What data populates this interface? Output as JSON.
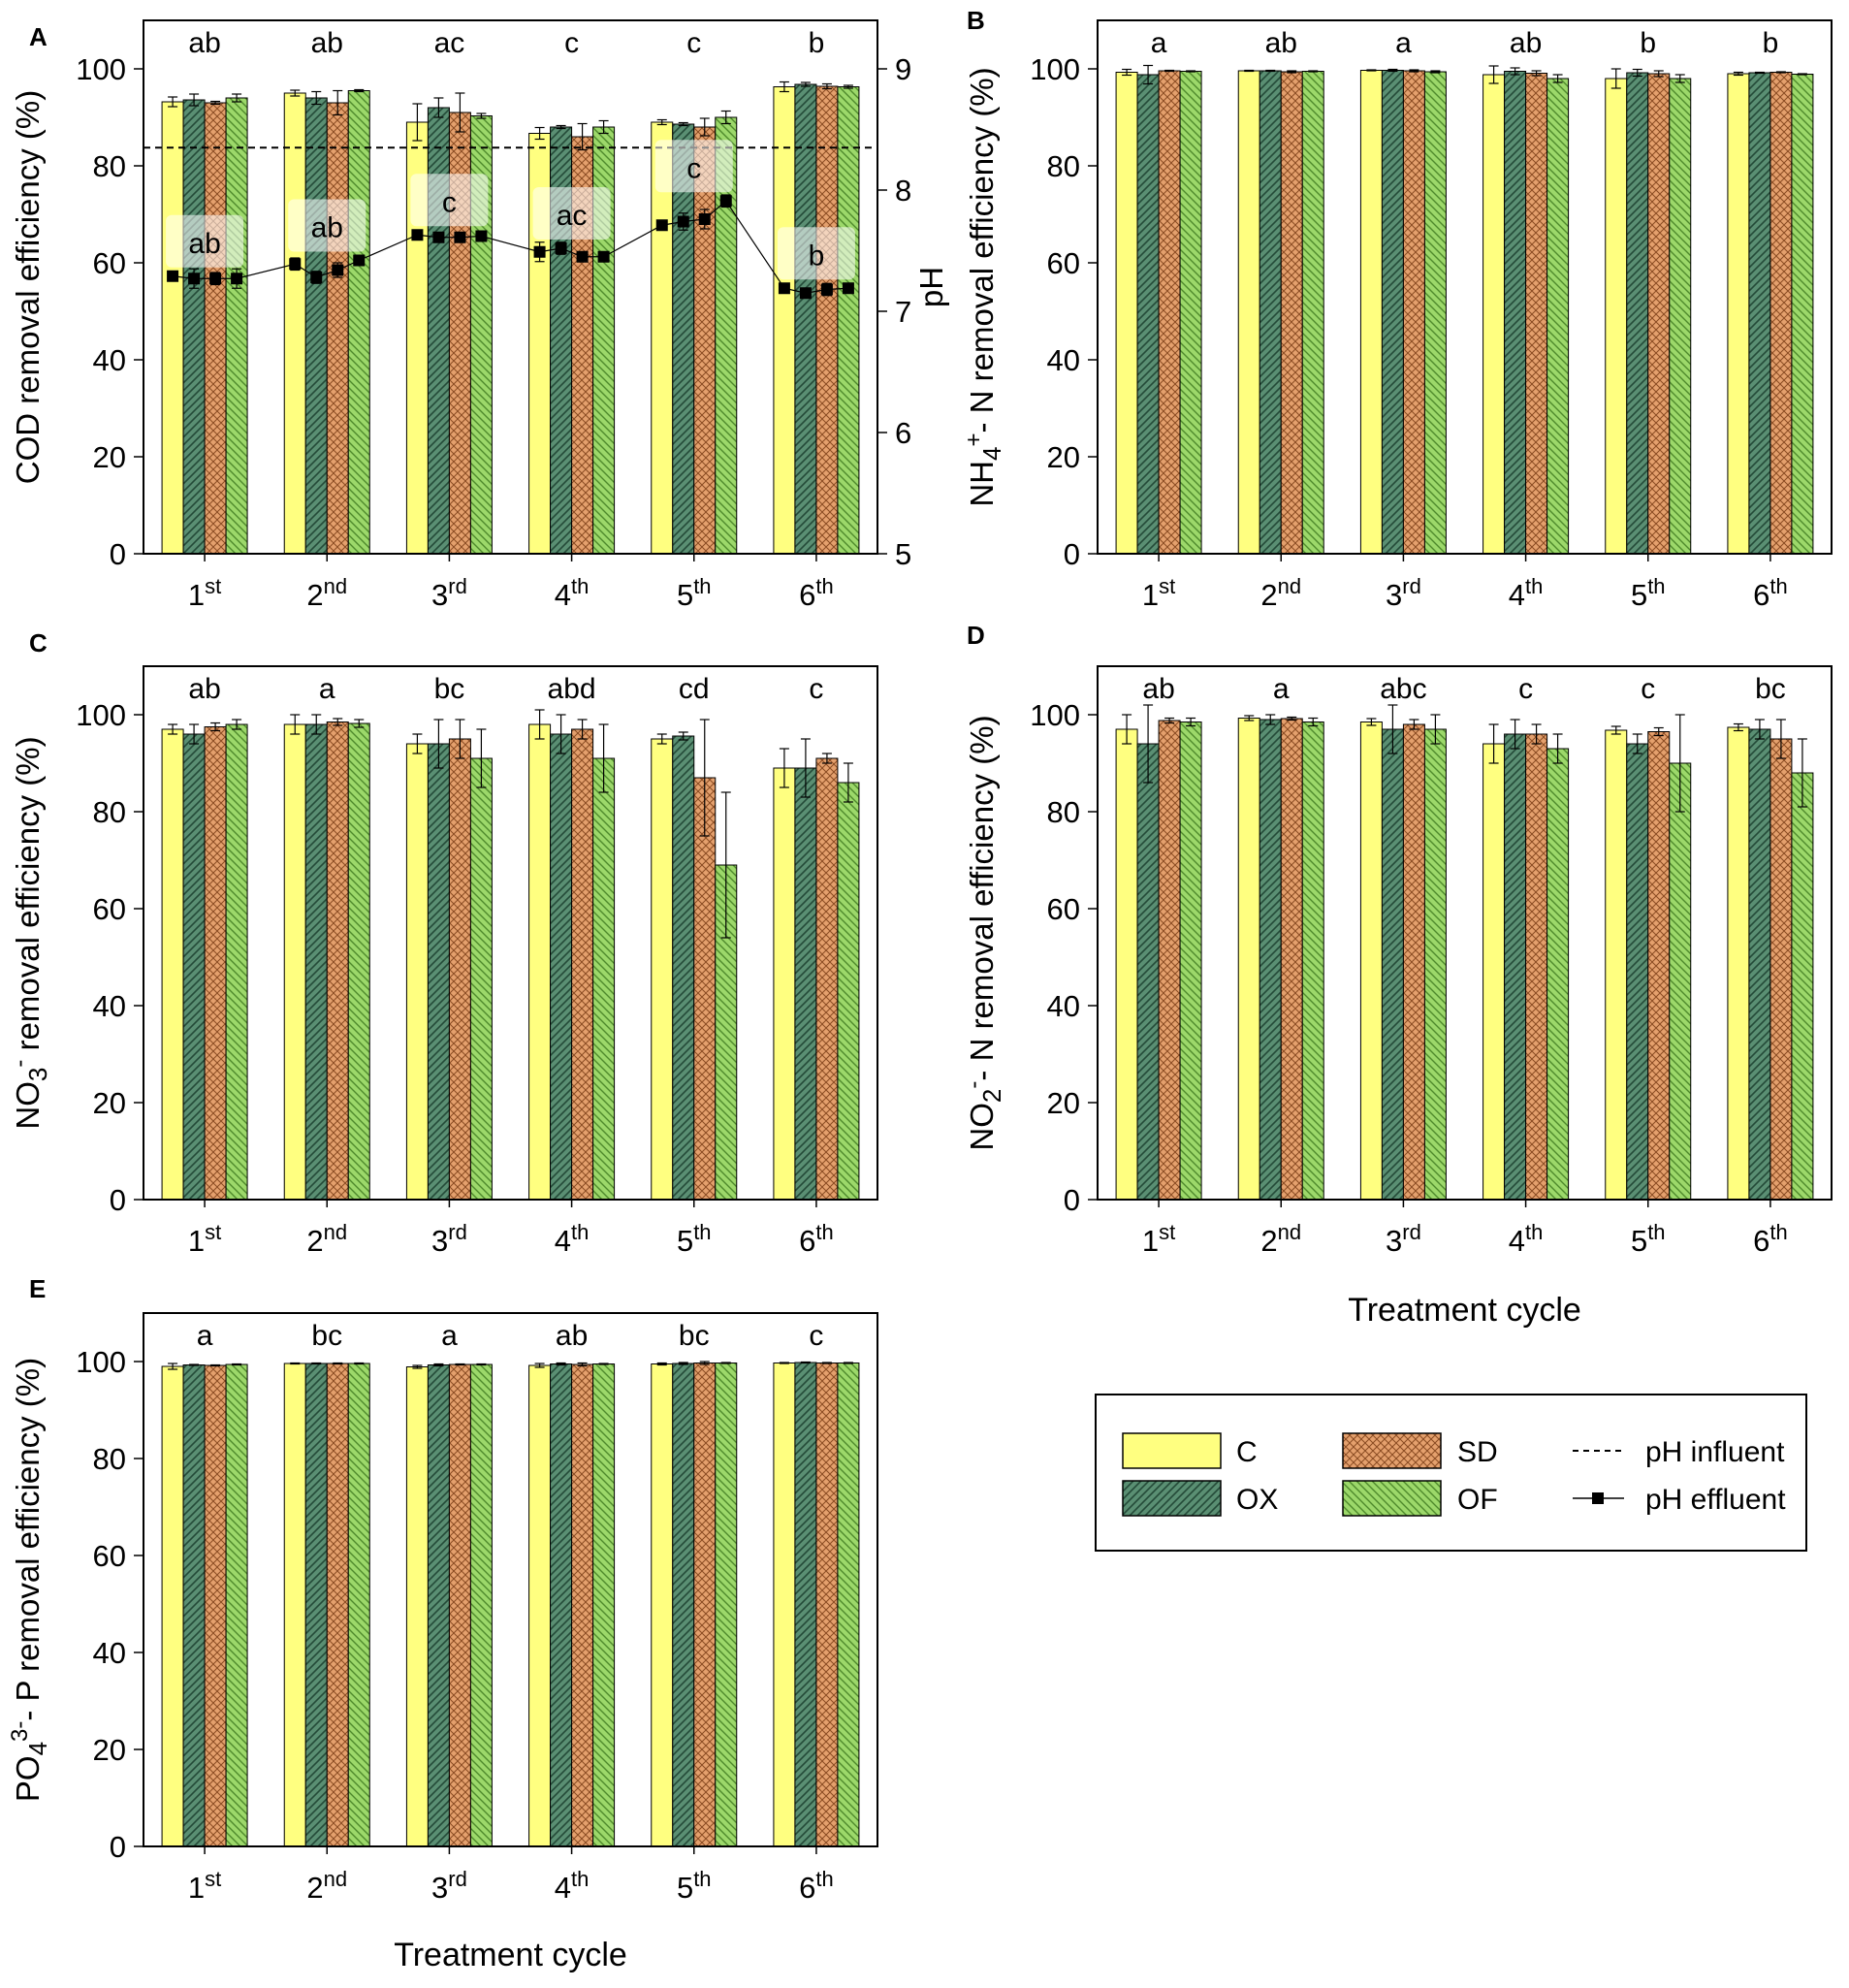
{
  "colors": {
    "C": "#ffff80",
    "OX": "#5a8f73",
    "SD": "#e4a06d",
    "OF": "#9cd86a",
    "bar_stroke": "#000000"
  },
  "legend": {
    "items": [
      {
        "key": "C",
        "label": "C"
      },
      {
        "key": "SD",
        "label": "SD"
      },
      {
        "key": "OX",
        "label": "OX"
      },
      {
        "key": "OF",
        "label": "OF"
      }
    ],
    "ph_influent": "pH influent",
    "ph_effluent": "pH effluent"
  },
  "chart_data": [
    {
      "type": "bar",
      "panel": "A",
      "categories": [
        "1st",
        "2nd",
        "3rd",
        "4th",
        "5th",
        "6th"
      ],
      "ylabel": "COD removal efficiency (%)",
      "y2label": "pH",
      "xlabel": "",
      "ylim": [
        0,
        110
      ],
      "yticks": [
        0,
        20,
        40,
        60,
        80,
        100
      ],
      "y2lim": [
        5,
        9.4
      ],
      "y2ticks": [
        5,
        6,
        7,
        8,
        9
      ],
      "letters": [
        "ab",
        "ab",
        "ac",
        "c",
        "c",
        "b"
      ],
      "series": [
        {
          "name": "C",
          "values": [
            93.2,
            95.0,
            89.0,
            86.7,
            89.0,
            96.3
          ],
          "errors": [
            1.0,
            0.6,
            3.8,
            1.2,
            0.5,
            1.0
          ]
        },
        {
          "name": "OX",
          "values": [
            93.6,
            94.0,
            92.0,
            88.0,
            88.6,
            96.8
          ],
          "errors": [
            1.2,
            1.3,
            2.0,
            0.3,
            0.3,
            0.4
          ]
        },
        {
          "name": "SD",
          "values": [
            93.0,
            93.0,
            91.0,
            86.0,
            88.0,
            96.4
          ],
          "errors": [
            0.3,
            2.5,
            4.0,
            2.7,
            1.8,
            0.5
          ]
        },
        {
          "name": "OF",
          "values": [
            94.0,
            95.5,
            90.3,
            88.0,
            90.0,
            96.3
          ],
          "errors": [
            0.8,
            0.2,
            0.5,
            1.3,
            1.3,
            0.3
          ]
        }
      ],
      "ph_influent": 8.35,
      "ph_effluent": [
        [
          7.29,
          7.27,
          7.27,
          7.27
        ],
        [
          7.39,
          7.28,
          7.34,
          7.42
        ],
        [
          7.63,
          7.61,
          7.61,
          7.62
        ],
        [
          7.49,
          7.52,
          7.45,
          7.45
        ],
        [
          7.71,
          7.74,
          7.76,
          7.91
        ],
        [
          7.19,
          7.15,
          7.18,
          7.19
        ]
      ],
      "ph_effluent_errors": [
        [
          0.03,
          0.08,
          0.05,
          0.08
        ],
        [
          0.05,
          0.05,
          0.06,
          0.02
        ],
        [
          0.02,
          0.02,
          0.02,
          0.02
        ],
        [
          0.08,
          0.05,
          0.03,
          0.03
        ],
        [
          0.03,
          0.07,
          0.08,
          0.05
        ],
        [
          0.02,
          0.03,
          0.05,
          0.02
        ]
      ],
      "ph_letters": [
        "ab",
        "ab",
        "c",
        "ac",
        "c",
        "b"
      ]
    },
    {
      "type": "bar",
      "panel": "B",
      "categories": [
        "1st",
        "2nd",
        "3rd",
        "4th",
        "5th",
        "6th"
      ],
      "ylabel": "NH4+ - N removal efficiency (%)",
      "ylabel_parts": [
        "NH",
        "4",
        "+",
        "- N removal efficiency (%)"
      ],
      "xlabel": "",
      "ylim": [
        0,
        110
      ],
      "yticks": [
        0,
        20,
        40,
        60,
        80,
        100
      ],
      "letters": [
        "a",
        "ab",
        "a",
        "ab",
        "b",
        "b"
      ],
      "series": [
        {
          "name": "C",
          "values": [
            99.3,
            99.6,
            99.7,
            98.8,
            98.0,
            99.0
          ],
          "errors": [
            0.6,
            0.1,
            0.1,
            1.8,
            2.0,
            0.3
          ]
        },
        {
          "name": "OX",
          "values": [
            98.8,
            99.6,
            99.7,
            99.5,
            99.2,
            99.2
          ],
          "errors": [
            1.9,
            0.1,
            0.2,
            0.7,
            0.7,
            0.1
          ]
        },
        {
          "name": "SD",
          "values": [
            99.6,
            99.4,
            99.6,
            99.1,
            99.0,
            99.3
          ],
          "errors": [
            0.1,
            0.2,
            0.2,
            0.5,
            0.6,
            0.1
          ]
        },
        {
          "name": "OF",
          "values": [
            99.5,
            99.5,
            99.4,
            98.0,
            98.0,
            98.9
          ],
          "errors": [
            0.1,
            0.1,
            0.2,
            0.8,
            0.8,
            0.1
          ]
        }
      ]
    },
    {
      "type": "bar",
      "panel": "C",
      "categories": [
        "1st",
        "2nd",
        "3rd",
        "4th",
        "5th",
        "6th"
      ],
      "ylabel": "NO3- removal efficiency (%)",
      "ylabel_parts": [
        "NO",
        "3",
        "-",
        " removal efficiency (%)"
      ],
      "xlabel": "",
      "ylim": [
        0,
        110
      ],
      "yticks": [
        0,
        20,
        40,
        60,
        80,
        100
      ],
      "letters": [
        "ab",
        "a",
        "bc",
        "abd",
        "cd",
        "c"
      ],
      "series": [
        {
          "name": "C",
          "values": [
            97.0,
            98.0,
            94.0,
            98.0,
            95.0,
            89.0
          ],
          "errors": [
            1.0,
            2.0,
            2.0,
            3.0,
            1.0,
            4.0
          ]
        },
        {
          "name": "OX",
          "values": [
            96.0,
            98.0,
            94.0,
            96.0,
            95.6,
            89.0
          ],
          "errors": [
            2.0,
            2.0,
            5.0,
            4.0,
            0.8,
            6.0
          ]
        },
        {
          "name": "SD",
          "values": [
            97.5,
            98.5,
            95.0,
            97.0,
            87.0,
            91.0
          ],
          "errors": [
            0.8,
            0.7,
            4.0,
            2.0,
            12.0,
            1.0
          ]
        },
        {
          "name": "OF",
          "values": [
            98.0,
            98.2,
            91.0,
            91.0,
            69.0,
            86.0
          ],
          "errors": [
            1.0,
            0.8,
            6.0,
            7.0,
            15.0,
            4.0
          ]
        }
      ]
    },
    {
      "type": "bar",
      "panel": "D",
      "categories": [
        "1st",
        "2nd",
        "3rd",
        "4th",
        "5th",
        "6th"
      ],
      "ylabel": "NO2- - N removal efficiency (%)",
      "ylabel_parts": [
        "NO",
        "2",
        "-",
        "- N removal efficiency (%)"
      ],
      "xlabel": "Treatment cycle",
      "ylim": [
        0,
        110
      ],
      "yticks": [
        0,
        20,
        40,
        60,
        80,
        100
      ],
      "letters": [
        "ab",
        "a",
        "abc",
        "c",
        "c",
        "bc"
      ],
      "series": [
        {
          "name": "C",
          "values": [
            97.0,
            99.3,
            98.5,
            94.0,
            96.8,
            97.4
          ],
          "errors": [
            3.0,
            0.5,
            0.7,
            4.0,
            0.8,
            0.7
          ]
        },
        {
          "name": "OX",
          "values": [
            94.0,
            99.0,
            97.0,
            96.0,
            94.0,
            97.0
          ],
          "errors": [
            8.0,
            1.0,
            5.0,
            3.0,
            2.0,
            2.0
          ]
        },
        {
          "name": "SD",
          "values": [
            98.8,
            99.2,
            98.0,
            96.0,
            96.5,
            95.0
          ],
          "errors": [
            0.5,
            0.3,
            1.0,
            2.0,
            0.8,
            4.0
          ]
        },
        {
          "name": "OF",
          "values": [
            98.5,
            98.5,
            97.0,
            93.0,
            90.0,
            88.0
          ],
          "errors": [
            0.8,
            0.8,
            3.0,
            3.0,
            10.0,
            7.0
          ]
        }
      ]
    },
    {
      "type": "bar",
      "panel": "E",
      "categories": [
        "1st",
        "2nd",
        "3rd",
        "4th",
        "5th",
        "6th"
      ],
      "ylabel": "PO43- - P removal efficiency (%)",
      "ylabel_parts": [
        "PO",
        "4",
        "3-",
        "- P removal efficiency (%)"
      ],
      "xlabel": "Treatment cycle",
      "ylim": [
        0,
        110
      ],
      "yticks": [
        0,
        20,
        40,
        60,
        80,
        100
      ],
      "letters": [
        "a",
        "bc",
        "a",
        "ab",
        "bc",
        "c"
      ],
      "series": [
        {
          "name": "C",
          "values": [
            99.0,
            99.6,
            98.9,
            99.2,
            99.5,
            99.7
          ],
          "errors": [
            0.6,
            0.1,
            0.3,
            0.4,
            0.2,
            0.1
          ]
        },
        {
          "name": "OX",
          "values": [
            99.3,
            99.6,
            99.3,
            99.5,
            99.6,
            99.8
          ],
          "errors": [
            0.1,
            0.1,
            0.2,
            0.2,
            0.2,
            0.1
          ]
        },
        {
          "name": "SD",
          "values": [
            99.2,
            99.6,
            99.4,
            99.4,
            99.7,
            99.7
          ],
          "errors": [
            0.1,
            0.1,
            0.1,
            0.3,
            0.3,
            0.1
          ]
        },
        {
          "name": "OF",
          "values": [
            99.4,
            99.6,
            99.4,
            99.5,
            99.7,
            99.7
          ],
          "errors": [
            0.1,
            0.1,
            0.1,
            0.1,
            0.1,
            0.1
          ]
        }
      ]
    }
  ]
}
